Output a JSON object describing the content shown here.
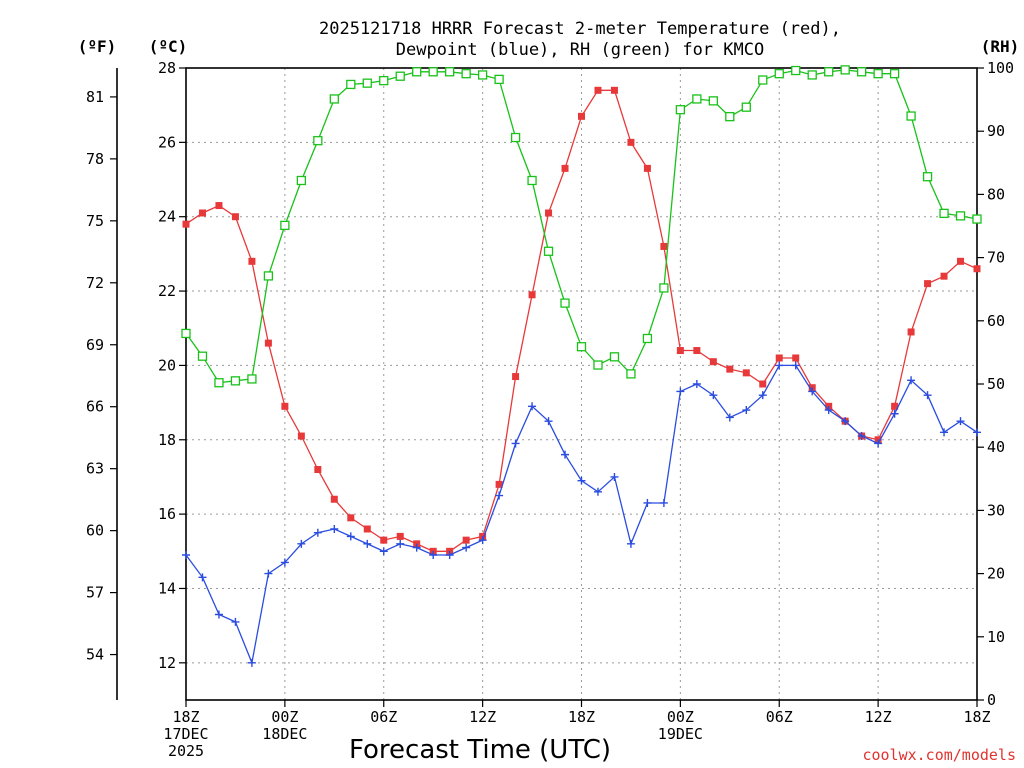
{
  "page": {
    "credit": "coolwx.com/models"
  },
  "chart_data": {
    "type": "line",
    "title_line1": "2025121718 HRRR Forecast 2-meter Temperature (red),",
    "title_line2": "Dewpoint (blue), RH (green) for KMCO",
    "xlabel": "Forecast Time (UTC)",
    "unit_f": "(ºF)",
    "unit_c": "(ºC)",
    "unit_rh": "(RH)",
    "x_range_hours": [
      0,
      48
    ],
    "ylim_c": [
      11,
      28
    ],
    "ylim_rh": [
      0,
      100
    ],
    "c_ticks": [
      "12",
      "14",
      "16",
      "18",
      "20",
      "22",
      "24",
      "26",
      "28"
    ],
    "f_ticks": [
      "54",
      "57",
      "60",
      "63",
      "66",
      "69",
      "72",
      "75",
      "78",
      "81"
    ],
    "rh_ticks": [
      "0",
      "10",
      "20",
      "30",
      "40",
      "50",
      "60",
      "70",
      "80",
      "90",
      "100"
    ],
    "x_ticks": [
      {
        "hour": 0,
        "line1": "18Z",
        "line2": "17DEC",
        "line3": "2025"
      },
      {
        "hour": 6,
        "line1": "00Z",
        "line2": "18DEC",
        "line3": ""
      },
      {
        "hour": 12,
        "line1": "06Z",
        "line2": "",
        "line3": ""
      },
      {
        "hour": 18,
        "line1": "12Z",
        "line2": "",
        "line3": ""
      },
      {
        "hour": 24,
        "line1": "18Z",
        "line2": "",
        "line3": ""
      },
      {
        "hour": 30,
        "line1": "00Z",
        "line2": "19DEC",
        "line3": ""
      },
      {
        "hour": 36,
        "line1": "06Z",
        "line2": "",
        "line3": ""
      },
      {
        "hour": 42,
        "line1": "12Z",
        "line2": "",
        "line3": ""
      },
      {
        "hour": 48,
        "line1": "18Z",
        "line2": "",
        "line3": ""
      }
    ],
    "series": [
      {
        "name": "Temperature",
        "color": "#e8393a",
        "marker": "filled-square",
        "axis": "celsius",
        "values": [
          23.8,
          24.1,
          24.3,
          24.0,
          22.8,
          20.6,
          18.9,
          18.1,
          17.2,
          16.4,
          15.9,
          15.6,
          15.3,
          15.4,
          15.2,
          15.0,
          15.0,
          15.3,
          15.4,
          16.8,
          19.7,
          21.9,
          24.1,
          25.3,
          26.7,
          27.4,
          27.4,
          26.0,
          25.3,
          23.2,
          20.4,
          20.4,
          20.1,
          19.9,
          19.8,
          19.5,
          20.2,
          20.2,
          19.4,
          18.9,
          18.5,
          18.1,
          18.0,
          18.9,
          20.9,
          22.2,
          22.4,
          22.8,
          22.6
        ],
        "labels": []
      },
      {
        "name": "Dewpoint",
        "color": "#2a4de0",
        "marker": "plus",
        "axis": "celsius",
        "values": [
          14.9,
          14.3,
          13.3,
          13.1,
          12.0,
          14.4,
          14.7,
          15.2,
          15.5,
          15.6,
          15.4,
          15.2,
          15.0,
          15.2,
          15.1,
          14.9,
          14.9,
          15.1,
          15.3,
          16.5,
          17.9,
          18.9,
          18.5,
          17.6,
          16.9,
          16.6,
          17.0,
          15.2,
          16.3,
          16.3,
          19.3,
          19.5,
          19.2,
          18.6,
          18.8,
          19.2,
          20.0,
          20.0,
          19.3,
          18.8,
          18.5,
          18.1,
          17.9,
          18.7,
          19.6,
          19.2,
          18.2,
          18.5,
          18.2
        ],
        "labels": []
      },
      {
        "name": "Relative Humidity",
        "color": "#19c219",
        "marker": "open-square",
        "axis": "rh",
        "values": [
          58.0,
          54.4,
          50.2,
          50.5,
          50.8,
          67.1,
          75.1,
          82.2,
          88.5,
          95.1,
          97.4,
          97.6,
          98.0,
          98.7,
          99.4,
          99.4,
          99.4,
          99.1,
          98.9,
          98.2,
          89.0,
          82.2,
          71.0,
          62.8,
          55.9,
          53.0,
          54.3,
          51.6,
          57.2,
          65.2,
          93.4,
          95.1,
          94.8,
          92.3,
          93.8,
          98.1,
          99.1,
          99.6,
          98.9,
          99.4,
          99.7,
          99.4,
          99.1,
          99.1,
          92.4,
          82.8,
          77.0,
          76.6,
          76.1
        ],
        "labels": []
      }
    ]
  }
}
